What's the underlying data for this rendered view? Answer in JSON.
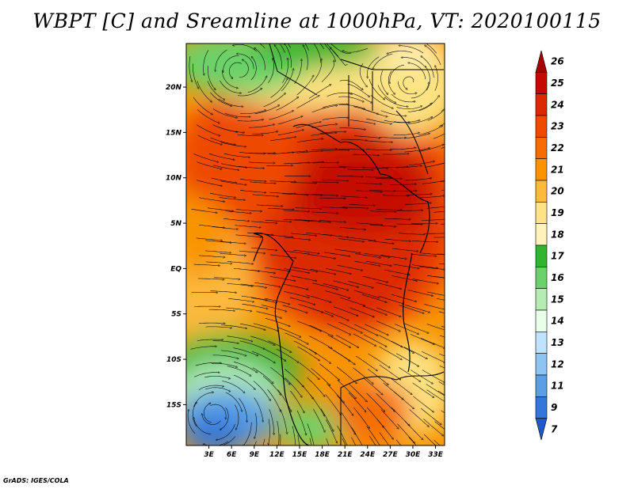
{
  "title": "WBPT [C] and Sreamline at 1000hPa, VT: 2020100115",
  "credit": "GrADS: IGES/COLA",
  "map": {
    "lat_ticks": [
      "20N",
      "15N",
      "10N",
      "5N",
      "EQ",
      "5S",
      "10S",
      "15S"
    ],
    "lat_values": [
      20,
      15,
      10,
      5,
      0,
      -5,
      -10,
      -15
    ],
    "lon_ticks": [
      "3E",
      "6E",
      "9E",
      "12E",
      "15E",
      "18E",
      "21E",
      "24E",
      "27E",
      "30E",
      "33E"
    ],
    "lon_values": [
      3,
      6,
      9,
      12,
      15,
      18,
      21,
      24,
      27,
      30,
      33
    ],
    "lat_range": [
      -19.5,
      24.8
    ],
    "lon_range": [
      0,
      34.2
    ]
  },
  "colorbar": {
    "labels": [
      "26",
      "25",
      "24",
      "23",
      "22",
      "21",
      "20",
      "19",
      "18",
      "17",
      "16",
      "15",
      "14",
      "13",
      "12",
      "11",
      "9",
      "7"
    ],
    "colors": [
      "#a50000",
      "#c40a00",
      "#dc2a00",
      "#ee4a00",
      "#f56d00",
      "#f99400",
      "#fcb93c",
      "#fde383",
      "#fff2ba",
      "#31b531",
      "#6bd26b",
      "#b4ecb4",
      "#e8ffe8",
      "#bfe3ff",
      "#8dc4f2",
      "#5a9fe6",
      "#3377d9",
      "#1f59c8"
    ]
  }
}
